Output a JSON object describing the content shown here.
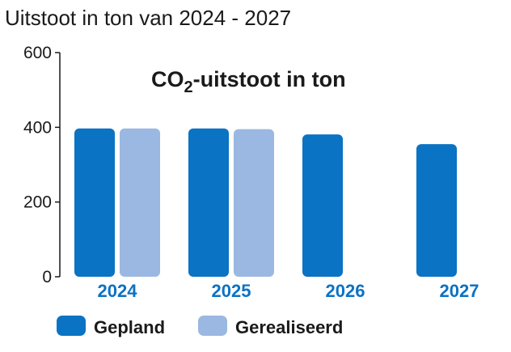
{
  "chart_data": {
    "type": "bar",
    "title": "Uitstoot in ton van 2024 - 2027",
    "inner_title": {
      "prefix": "CO",
      "subscript": "2",
      "suffix": "-uitstoot in ton"
    },
    "xlabel": "",
    "ylabel": "",
    "categories": [
      "2024",
      "2025",
      "2026",
      "2027"
    ],
    "series": [
      {
        "name": "Gepland",
        "color": "#0a73c3",
        "values": [
          397,
          397,
          381,
          355
        ]
      },
      {
        "name": "Gerealiseerd",
        "color": "#9ab8e1",
        "values": [
          397,
          395,
          null,
          null
        ]
      }
    ],
    "ylim": [
      0,
      600
    ],
    "yticks": [
      "0",
      "200",
      "400",
      "600"
    ],
    "grid": false,
    "legend": "bottom-left"
  }
}
